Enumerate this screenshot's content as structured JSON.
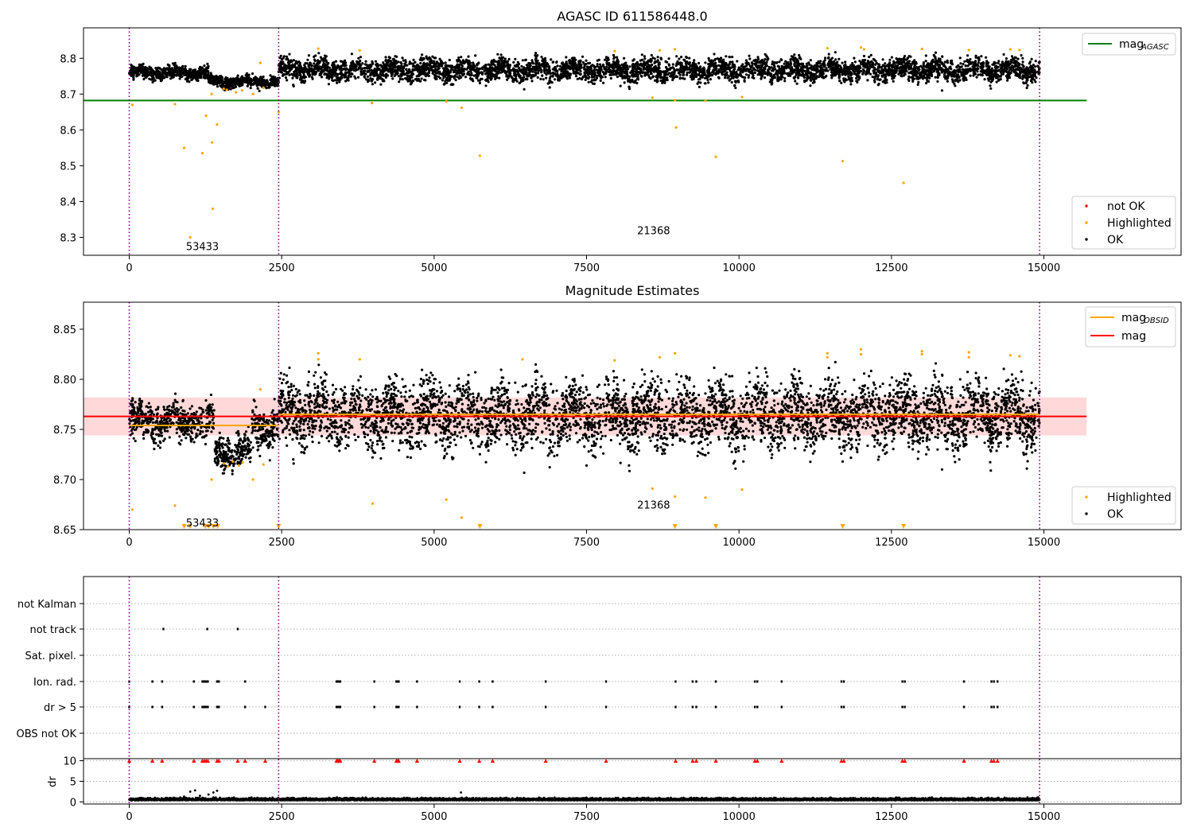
{
  "figure": {
    "panels": [
      {
        "title": "AGASC ID 611586448.0",
        "ylim": [
          8.25,
          8.885
        ],
        "xlim": [
          -750,
          17250
        ],
        "xticks": [
          0,
          2500,
          5000,
          7500,
          10000,
          12500,
          15000
        ],
        "yticks": [
          "8.3",
          "8.4",
          "8.5",
          "8.6",
          "8.7",
          "8.8"
        ],
        "annotations": [
          "53433",
          "21368"
        ],
        "legend_line": {
          "label": "mag",
          "sub": "AGASC",
          "color": "#008000"
        },
        "legend_points": [
          {
            "label": "not OK",
            "color": "#ff0000"
          },
          {
            "label": "Highlighted",
            "color": "#ffa500"
          },
          {
            "label": "OK",
            "color": "#000000"
          }
        ]
      },
      {
        "title": "Magnitude Estimates",
        "ylim": [
          8.65,
          8.877
        ],
        "xlim": [
          -750,
          17250
        ],
        "xticks": [
          0,
          2500,
          5000,
          7500,
          10000,
          12500,
          15000
        ],
        "yticks": [
          "8.65",
          "8.70",
          "8.75",
          "8.80",
          "8.85"
        ],
        "annotations": [
          "53433",
          "21368"
        ],
        "legend_lines": [
          {
            "label": "mag",
            "sub": "OBSID",
            "color": "#ffa500"
          },
          {
            "label": "mag",
            "sub": "",
            "color": "#ff0000"
          }
        ],
        "legend_points": [
          {
            "label": "Highlighted",
            "color": "#ffa500"
          },
          {
            "label": "OK",
            "color": "#000000"
          }
        ]
      },
      {
        "flag_labels": [
          "not Kalman",
          "not track",
          "Sat. pixel.",
          "Ion. rad.",
          "dr > 5",
          "OBS not OK"
        ],
        "dr_label": "dr",
        "dr_yticks": [
          "0",
          "5",
          "10"
        ],
        "xticks": [
          0,
          2500,
          5000,
          7500,
          10000,
          12500,
          15000
        ]
      }
    ],
    "colors": {
      "ok": "#000000",
      "highlighted": "#ffa500",
      "not_ok": "#ff0000",
      "agasc_line": "#008000",
      "mean_line": "#ff0000",
      "band": "#ffcccc",
      "obsid_boundary": "#800080"
    }
  },
  "chart_data": [
    {
      "type": "scatter",
      "title": "AGASC ID 611586448.0",
      "xlim": [
        -750,
        17250
      ],
      "ylim": [
        8.25,
        8.885
      ],
      "obsid_boundaries": [
        0,
        2450,
        14930
      ],
      "annotations": [
        {
          "text": "53433",
          "x": 1200,
          "y": 8.275
        },
        {
          "text": "21368",
          "x": 8600,
          "y": 8.32
        }
      ],
      "hlines": [
        {
          "name": "mag_AGASC",
          "y": 8.682,
          "x": [
            -750,
            15700
          ],
          "color": "#008000"
        }
      ],
      "baseline_segments": [
        {
          "x": [
            0,
            1300
          ],
          "y": 8.76,
          "spread": 0.009
        },
        {
          "x": [
            1300,
            2450
          ],
          "y": 8.735,
          "spread": 0.008
        },
        {
          "x": [
            2450,
            14930
          ],
          "y": 8.768,
          "spread": 0.015
        }
      ],
      "highlighted_points": [
        [
          50,
          8.67
        ],
        [
          750,
          8.672
        ],
        [
          900,
          8.55
        ],
        [
          1200,
          8.535
        ],
        [
          1260,
          8.64
        ],
        [
          1350,
          8.7
        ],
        [
          1360,
          8.565
        ],
        [
          1370,
          8.38
        ],
        [
          1440,
          8.615
        ],
        [
          1000,
          8.3
        ],
        [
          2030,
          8.7
        ],
        [
          2200,
          8.718
        ],
        [
          2450,
          8.65
        ],
        [
          3980,
          8.675
        ],
        [
          5200,
          8.68
        ],
        [
          5450,
          8.662
        ],
        [
          5750,
          8.528
        ],
        [
          8580,
          8.69
        ],
        [
          8950,
          8.683
        ],
        [
          8970,
          8.607
        ],
        [
          9450,
          8.682
        ],
        [
          9620,
          8.525
        ],
        [
          10050,
          8.692
        ],
        [
          11700,
          8.513
        ],
        [
          12700,
          8.452
        ],
        [
          3100,
          8.827
        ],
        [
          3780,
          8.822
        ],
        [
          7960,
          8.82
        ],
        [
          8700,
          8.822
        ],
        [
          8950,
          8.825
        ],
        [
          11450,
          8.828
        ],
        [
          12000,
          8.83
        ],
        [
          12050,
          8.825
        ],
        [
          13000,
          8.826
        ],
        [
          13770,
          8.823
        ],
        [
          14450,
          8.825
        ],
        [
          14600,
          8.823
        ],
        [
          1550,
          8.715
        ],
        [
          1600,
          8.712
        ],
        [
          1750,
          8.705
        ],
        [
          1850,
          8.71
        ],
        [
          2150,
          8.787
        ]
      ],
      "outlier_points": [
        [
          13330,
          8.71
        ],
        [
          8200,
          8.72
        ],
        [
          9350,
          8.72
        ]
      ]
    },
    {
      "type": "scatter",
      "title": "Magnitude Estimates",
      "xlim": [
        -750,
        17250
      ],
      "ylim": [
        8.65,
        8.877
      ],
      "obsid_boundaries": [
        0,
        2450,
        14930
      ],
      "annotations": [
        {
          "text": "53433",
          "x": 1200,
          "y": 8.657
        },
        {
          "text": "21368",
          "x": 8600,
          "y": 8.675
        }
      ],
      "hlines": [
        {
          "name": "mag",
          "y": 8.763,
          "x": [
            -750,
            15700
          ],
          "color": "#ff0000"
        },
        {
          "name": "mag_OBSID",
          "y": 8.754,
          "x": [
            0,
            2450
          ],
          "color": "#ffa500"
        },
        {
          "name": "mag_OBSID",
          "y": 8.765,
          "x": [
            2450,
            14930
          ],
          "color": "#ffa500"
        }
      ],
      "band": {
        "y": [
          8.744,
          8.782
        ],
        "x": [
          -750,
          15700
        ]
      },
      "baseline_segments": [
        {
          "x": [
            0,
            1400
          ],
          "y": 8.758,
          "spread": 0.009
        },
        {
          "x": [
            1400,
            2000
          ],
          "y": 8.728,
          "spread": 0.008
        },
        {
          "x": [
            2000,
            2450
          ],
          "y": 8.752,
          "spread": 0.01
        },
        {
          "x": [
            2450,
            14930
          ],
          "y": 8.765,
          "spread": 0.016
        }
      ],
      "highlighted_points": [
        [
          50,
          8.67
        ],
        [
          750,
          8.674
        ],
        [
          1350,
          8.7
        ],
        [
          2030,
          8.7
        ],
        [
          2200,
          8.715
        ],
        [
          2150,
          8.79
        ],
        [
          3100,
          8.826
        ],
        [
          3100,
          8.82
        ],
        [
          3780,
          8.82
        ],
        [
          3990,
          8.676
        ],
        [
          5200,
          8.68
        ],
        [
          5450,
          8.662
        ],
        [
          6450,
          8.82
        ],
        [
          7960,
          8.819
        ],
        [
          8580,
          8.691
        ],
        [
          8700,
          8.822
        ],
        [
          8950,
          8.826
        ],
        [
          8950,
          8.683
        ],
        [
          9450,
          8.682
        ],
        [
          10050,
          8.69
        ],
        [
          11450,
          8.826
        ],
        [
          11450,
          8.822
        ],
        [
          12000,
          8.83
        ],
        [
          12000,
          8.825
        ],
        [
          13000,
          8.828
        ],
        [
          13000,
          8.825
        ],
        [
          13770,
          8.827
        ],
        [
          13770,
          8.822
        ],
        [
          14450,
          8.824
        ],
        [
          14600,
          8.823
        ],
        [
          1550,
          8.716
        ],
        [
          1620,
          8.713
        ],
        [
          1700,
          8.718
        ],
        [
          1800,
          8.714
        ],
        [
          1860,
          8.717
        ]
      ],
      "clipped_markers_x": [
        900,
        1000,
        1250,
        1300,
        1380,
        1450,
        2450,
        5750,
        8950,
        9620,
        11700,
        12700
      ],
      "outlier_points": [
        [
          13330,
          8.71
        ],
        [
          7500,
          8.714
        ],
        [
          11700,
          8.718
        ]
      ]
    },
    {
      "type": "scatter",
      "xlim": [
        -750,
        17250
      ],
      "obsid_boundaries": [
        0,
        2450,
        14930
      ],
      "flags": [
        {
          "label": "not Kalman",
          "x": []
        },
        {
          "label": "not track",
          "x": [
            560,
            1280,
            1780
          ]
        },
        {
          "label": "Sat. pixel.",
          "x": []
        },
        {
          "label": "Ion. rad.",
          "x": [
            0,
            380,
            540,
            1060,
            1200,
            1230,
            1260,
            1290,
            1440,
            1470,
            1900,
            3400,
            3420,
            3440,
            3460,
            4020,
            4380,
            4400,
            4420,
            4720,
            5420,
            5740,
            5960,
            6830,
            7820,
            8960,
            9240,
            9300,
            9620,
            10260,
            10300,
            10700,
            11680,
            11720,
            12680,
            12720,
            13690,
            14140,
            14180,
            14240
          ]
        },
        {
          "label": "dr > 5",
          "x": [
            0,
            380,
            540,
            1060,
            1200,
            1230,
            1260,
            1290,
            1440,
            1470,
            1900,
            2230,
            3400,
            3420,
            3440,
            3460,
            4020,
            4380,
            4400,
            4420,
            4720,
            5420,
            5740,
            5960,
            6830,
            7820,
            8960,
            9240,
            9300,
            9620,
            10260,
            10300,
            10700,
            11680,
            11720,
            12680,
            12720,
            13690,
            14140,
            14180,
            14240
          ]
        },
        {
          "label": "OBS not OK",
          "x": []
        }
      ],
      "dr_ylim": [
        -0.5,
        10.5
      ],
      "dr_baseline": 0.4,
      "dr_clipped_x": [
        0,
        380,
        540,
        1060,
        1200,
        1230,
        1260,
        1290,
        1440,
        1470,
        1780,
        1900,
        2230,
        3400,
        3420,
        3440,
        3460,
        4020,
        4380,
        4400,
        4420,
        4720,
        5420,
        5740,
        5960,
        6830,
        7820,
        8960,
        9240,
        9300,
        9620,
        10260,
        10300,
        10700,
        11680,
        11720,
        12680,
        12720,
        13690,
        14140,
        14180,
        14240
      ],
      "dr_points": [
        [
          1000,
          2.5
        ],
        [
          1080,
          2.8
        ],
        [
          1300,
          1.8
        ],
        [
          1380,
          2.3
        ],
        [
          1440,
          2.7
        ],
        [
          5440,
          2.3
        ],
        [
          900,
          1.3
        ],
        [
          1160,
          1.5
        ]
      ]
    }
  ]
}
